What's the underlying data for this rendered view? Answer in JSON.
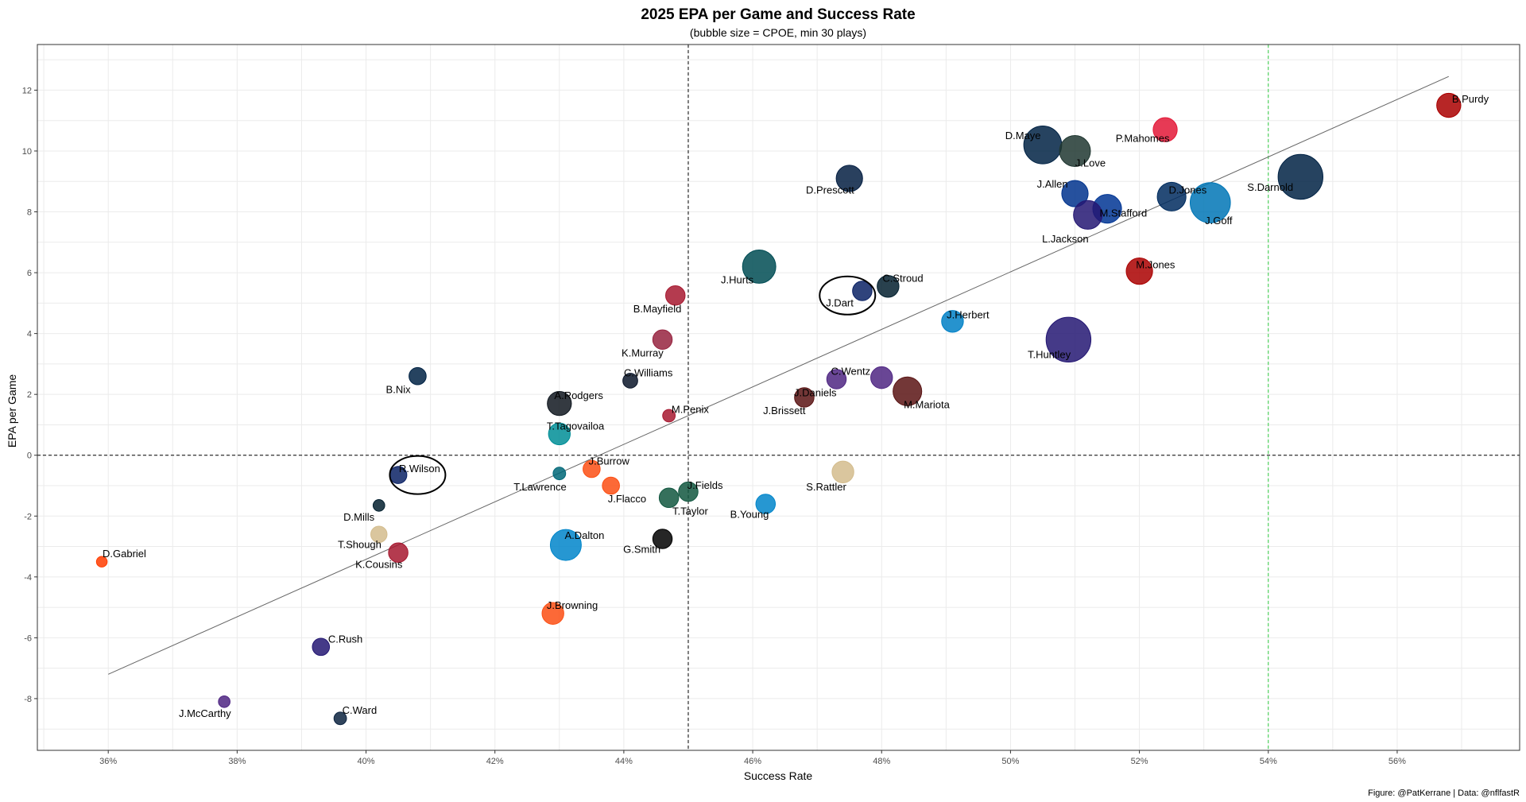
{
  "chart_data": {
    "type": "scatter",
    "title": "2025 EPA per Game and Success Rate",
    "subtitle": "(bubble size = CPOE, min 30 plays)",
    "xlabel": "Success Rate",
    "ylabel": "EPA per Game",
    "caption": "Figure: @PatKerrane | Data: @nflfastR",
    "xlim": [
      0.349,
      0.579
    ],
    "ylim": [
      -9.7,
      13.5
    ],
    "x_ticks": [
      0.36,
      0.38,
      0.4,
      0.42,
      0.44,
      0.46,
      0.48,
      0.5,
      0.52,
      0.54,
      0.56
    ],
    "x_tick_labels": [
      "36%",
      "38%",
      "40%",
      "42%",
      "44%",
      "46%",
      "48%",
      "50%",
      "52%",
      "54%",
      "56%"
    ],
    "y_ticks": [
      -8,
      -6,
      -4,
      -2,
      0,
      2,
      4,
      6,
      8,
      10,
      12
    ],
    "y_tick_labels": [
      "-8",
      "-6",
      "-4",
      "-2",
      "0",
      "2",
      "4",
      "6",
      "8",
      "10",
      "12"
    ],
    "grid": true,
    "legend": "none",
    "reference_lines": [
      {
        "axis": "x",
        "value": 0.45,
        "style": "dashed",
        "color": "#000000"
      },
      {
        "axis": "y",
        "value": 0,
        "style": "dashed",
        "color": "#000000"
      },
      {
        "axis": "x",
        "value": 0.54,
        "style": "dashed",
        "color": "#2ecc40"
      }
    ],
    "trend_line": {
      "from": [
        0.36,
        -7.2
      ],
      "to": [
        0.568,
        12.45
      ],
      "color": "#666666"
    },
    "highlighted": [
      "J.Dart",
      "R.Wilson"
    ],
    "points": [
      {
        "name": "B.Purdy",
        "x": 0.568,
        "y": 11.5,
        "size": 3.5,
        "color": "#AA0000"
      },
      {
        "name": "D.Maye",
        "x": 0.505,
        "y": 10.2,
        "size": 6.5,
        "color": "#002244"
      },
      {
        "name": "J.Love",
        "x": 0.51,
        "y": 10.0,
        "size": 5.0,
        "color": "#203731"
      },
      {
        "name": "P.Mahomes",
        "x": 0.524,
        "y": 10.7,
        "size": 3.5,
        "color": "#E31837"
      },
      {
        "name": "S.Darnold",
        "x": 0.545,
        "y": 9.15,
        "size": 8.0,
        "color": "#002244"
      },
      {
        "name": "D.Prescott",
        "x": 0.475,
        "y": 9.1,
        "size": 4.0,
        "color": "#041E42"
      },
      {
        "name": "J.Allen",
        "x": 0.51,
        "y": 8.6,
        "size": 4.0,
        "color": "#00338D"
      },
      {
        "name": "D.Jones",
        "x": 0.525,
        "y": 8.5,
        "size": 4.5,
        "color": "#002C5F"
      },
      {
        "name": "J.Goff",
        "x": 0.531,
        "y": 8.3,
        "size": 7.0,
        "color": "#0076B6"
      },
      {
        "name": "M.Stafford",
        "x": 0.515,
        "y": 8.1,
        "size": 4.5,
        "color": "#003594"
      },
      {
        "name": "L.Jackson",
        "x": 0.512,
        "y": 7.9,
        "size": 4.5,
        "color": "#241773"
      },
      {
        "name": "M.Jones",
        "x": 0.52,
        "y": 6.05,
        "size": 4.0,
        "color": "#AA0000"
      },
      {
        "name": "J.Hurts",
        "x": 0.461,
        "y": 6.2,
        "size": 5.5,
        "color": "#004C54"
      },
      {
        "name": "C.Stroud",
        "x": 0.481,
        "y": 5.55,
        "size": 3.0,
        "color": "#03202F"
      },
      {
        "name": "J.Dart",
        "x": 0.477,
        "y": 5.4,
        "size": 2.5,
        "color": "#0B2265"
      },
      {
        "name": "B.Mayfield",
        "x": 0.448,
        "y": 5.25,
        "size": 2.5,
        "color": "#A71930"
      },
      {
        "name": "J.Herbert",
        "x": 0.491,
        "y": 4.4,
        "size": 3.0,
        "color": "#0080C6"
      },
      {
        "name": "T.Huntley",
        "x": 0.509,
        "y": 3.8,
        "size": 8.0,
        "color": "#241773"
      },
      {
        "name": "K.Murray",
        "x": 0.446,
        "y": 3.8,
        "size": 2.5,
        "color": "#97233F"
      },
      {
        "name": "B.Nix",
        "x": 0.408,
        "y": 2.6,
        "size": 2.0,
        "color": "#002244"
      },
      {
        "name": "C.Williams",
        "x": 0.441,
        "y": 2.45,
        "size": 1.5,
        "color": "#0B162A"
      },
      {
        "name": "C.Wentz",
        "x": 0.473,
        "y": 2.5,
        "size": 2.5,
        "color": "#4F2683"
      },
      {
        "name": "C.Wentz2",
        "x": 0.48,
        "y": 2.55,
        "size": 3.0,
        "color": "#4F2683"
      },
      {
        "name": "M.Mariota",
        "x": 0.484,
        "y": 2.1,
        "size": 4.5,
        "color": "#5A1414"
      },
      {
        "name": "A.Rodgers",
        "x": 0.43,
        "y": 1.7,
        "size": 3.5,
        "color": "#101820"
      },
      {
        "name": "J.Daniels",
        "x": 0.468,
        "y": 1.9,
        "size": 2.5,
        "color": "#5A1414"
      },
      {
        "name": "M.Penix",
        "x": 0.447,
        "y": 1.3,
        "size": 1.0,
        "color": "#A71930"
      },
      {
        "name": "T.Tagovailoa",
        "x": 0.43,
        "y": 0.7,
        "size": 3.0,
        "color": "#008E97"
      },
      {
        "name": "R.Wilson",
        "x": 0.405,
        "y": -0.65,
        "size": 2.0,
        "color": "#0B2265"
      },
      {
        "name": "T.Lawrence",
        "x": 0.43,
        "y": -0.6,
        "size": 1.0,
        "color": "#006778"
      },
      {
        "name": "J.Burrow",
        "x": 0.435,
        "y": -0.45,
        "size": 2.0,
        "color": "#FB4F14"
      },
      {
        "name": "J.Flacco",
        "x": 0.438,
        "y": -1.0,
        "size": 2.0,
        "color": "#FB4F14"
      },
      {
        "name": "S.Rattler",
        "x": 0.474,
        "y": -0.55,
        "size": 3.0,
        "color": "#D3BC8D"
      },
      {
        "name": "J.Fields",
        "x": 0.45,
        "y": -1.2,
        "size": 2.5,
        "color": "#125740"
      },
      {
        "name": "T.Taylor",
        "x": 0.447,
        "y": -1.4,
        "size": 2.5,
        "color": "#125740"
      },
      {
        "name": "B.Young",
        "x": 0.462,
        "y": -1.6,
        "size": 2.5,
        "color": "#0085CA"
      },
      {
        "name": "D.Mills",
        "x": 0.402,
        "y": -1.65,
        "size": 0.8,
        "color": "#03202F"
      },
      {
        "name": "A.Dalton",
        "x": 0.431,
        "y": -2.95,
        "size": 5.0,
        "color": "#0085CA"
      },
      {
        "name": "G.Smith",
        "x": 0.446,
        "y": -2.75,
        "size": 2.5,
        "color": "#000000"
      },
      {
        "name": "T.Shough",
        "x": 0.402,
        "y": -2.6,
        "size": 1.8,
        "color": "#D3BC8D"
      },
      {
        "name": "K.Cousins",
        "x": 0.405,
        "y": -3.2,
        "size": 2.5,
        "color": "#A71930"
      },
      {
        "name": "D.Gabriel",
        "x": 0.359,
        "y": -3.5,
        "size": 0.6,
        "color": "#FF3C00"
      },
      {
        "name": "J.Browning",
        "x": 0.429,
        "y": -5.2,
        "size": 3.0,
        "color": "#FB4F14"
      },
      {
        "name": "C.Rush",
        "x": 0.393,
        "y": -6.3,
        "size": 2.0,
        "color": "#241773"
      },
      {
        "name": "J.McCarthy",
        "x": 0.378,
        "y": -8.1,
        "size": 0.8,
        "color": "#4F2683"
      },
      {
        "name": "C.Ward",
        "x": 0.396,
        "y": -8.65,
        "size": 1.0,
        "color": "#0C2340"
      }
    ],
    "labels": [
      {
        "text": "B.Purdy",
        "x": 0.5685,
        "y": 11.7,
        "anchor": "start"
      },
      {
        "text": "D.Maye",
        "x": 0.5047,
        "y": 10.5,
        "anchor": "end"
      },
      {
        "text": "P.Mahomes",
        "x": 0.5205,
        "y": 10.4,
        "anchor": "middle"
      },
      {
        "text": "J.Love",
        "x": 0.5124,
        "y": 9.6,
        "anchor": "middle"
      },
      {
        "text": "S.Darnold",
        "x": 0.5403,
        "y": 8.8,
        "anchor": "middle"
      },
      {
        "text": "D.Prescott",
        "x": 0.472,
        "y": 8.7,
        "anchor": "middle"
      },
      {
        "text": "J.Allen",
        "x": 0.5065,
        "y": 8.9,
        "anchor": "middle"
      },
      {
        "text": "D.Jones",
        "x": 0.5275,
        "y": 8.7,
        "anchor": "middle"
      },
      {
        "text": "M.Stafford",
        "x": 0.5175,
        "y": 7.95,
        "anchor": "middle"
      },
      {
        "text": "J.Goff",
        "x": 0.5323,
        "y": 7.7,
        "anchor": "middle"
      },
      {
        "text": "L.Jackson",
        "x": 0.5085,
        "y": 7.1,
        "anchor": "middle"
      },
      {
        "text": "M.Jones",
        "x": 0.5225,
        "y": 6.25,
        "anchor": "middle"
      },
      {
        "text": "J.Hurts",
        "x": 0.4576,
        "y": 5.75,
        "anchor": "middle"
      },
      {
        "text": "C.Stroud",
        "x": 0.4833,
        "y": 5.8,
        "anchor": "middle"
      },
      {
        "text": "J.Dart",
        "x": 0.4735,
        "y": 5.0,
        "anchor": "middle"
      },
      {
        "text": "B.Mayfield",
        "x": 0.4452,
        "y": 4.8,
        "anchor": "middle"
      },
      {
        "text": "J.Herbert",
        "x": 0.4934,
        "y": 4.6,
        "anchor": "middle"
      },
      {
        "text": "T.Huntley",
        "x": 0.506,
        "y": 3.3,
        "anchor": "middle"
      },
      {
        "text": "K.Murray",
        "x": 0.4429,
        "y": 3.35,
        "anchor": "middle"
      },
      {
        "text": "C.Williams",
        "x": 0.4438,
        "y": 2.7,
        "anchor": "middle"
      },
      {
        "text": "B.Nix",
        "x": 0.405,
        "y": 2.15,
        "anchor": "middle"
      },
      {
        "text": "C.Wentz",
        "x": 0.4752,
        "y": 2.75,
        "anchor": "middle"
      },
      {
        "text": "J.Daniels",
        "x": 0.4697,
        "y": 2.05,
        "anchor": "middle"
      },
      {
        "text": "M.Mariota",
        "x": 0.487,
        "y": 1.65,
        "anchor": "middle"
      },
      {
        "text": "A.Rodgers",
        "x": 0.433,
        "y": 1.95,
        "anchor": "middle"
      },
      {
        "text": "J.Brissett",
        "x": 0.4649,
        "y": 1.45,
        "anchor": "middle"
      },
      {
        "text": "M.Penix",
        "x": 0.4503,
        "y": 1.5,
        "anchor": "middle"
      },
      {
        "text": "T.Tagovailoa",
        "x": 0.4325,
        "y": 0.95,
        "anchor": "middle"
      },
      {
        "text": "R.Wilson",
        "x": 0.4083,
        "y": -0.45,
        "anchor": "middle"
      },
      {
        "text": "J.Burrow",
        "x": 0.4377,
        "y": -0.2,
        "anchor": "middle"
      },
      {
        "text": "T.Lawrence",
        "x": 0.427,
        "y": -1.05,
        "anchor": "middle"
      },
      {
        "text": "J.Fields",
        "x": 0.4526,
        "y": -1.0,
        "anchor": "middle"
      },
      {
        "text": "S.Rattler",
        "x": 0.4714,
        "y": -1.05,
        "anchor": "middle"
      },
      {
        "text": "J.Flacco",
        "x": 0.4405,
        "y": -1.45,
        "anchor": "middle"
      },
      {
        "text": "T.Taylor",
        "x": 0.4503,
        "y": -1.85,
        "anchor": "middle"
      },
      {
        "text": "B.Young",
        "x": 0.4595,
        "y": -1.95,
        "anchor": "middle"
      },
      {
        "text": "D.Mills",
        "x": 0.3989,
        "y": -2.05,
        "anchor": "middle"
      },
      {
        "text": "A.Dalton",
        "x": 0.4339,
        "y": -2.65,
        "anchor": "middle"
      },
      {
        "text": "T.Shough",
        "x": 0.399,
        "y": -2.95,
        "anchor": "middle"
      },
      {
        "text": "G.Smith",
        "x": 0.4428,
        "y": -3.1,
        "anchor": "middle"
      },
      {
        "text": "D.Gabriel",
        "x": 0.3625,
        "y": -3.25,
        "anchor": "middle"
      },
      {
        "text": "K.Cousins",
        "x": 0.402,
        "y": -3.6,
        "anchor": "middle"
      },
      {
        "text": "J.Browning",
        "x": 0.432,
        "y": -4.95,
        "anchor": "middle"
      },
      {
        "text": "C.Rush",
        "x": 0.3968,
        "y": -6.05,
        "anchor": "middle"
      },
      {
        "text": "J.McCarthy",
        "x": 0.375,
        "y": -8.5,
        "anchor": "middle"
      },
      {
        "text": "C.Ward",
        "x": 0.399,
        "y": -8.4,
        "anchor": "middle"
      }
    ]
  }
}
